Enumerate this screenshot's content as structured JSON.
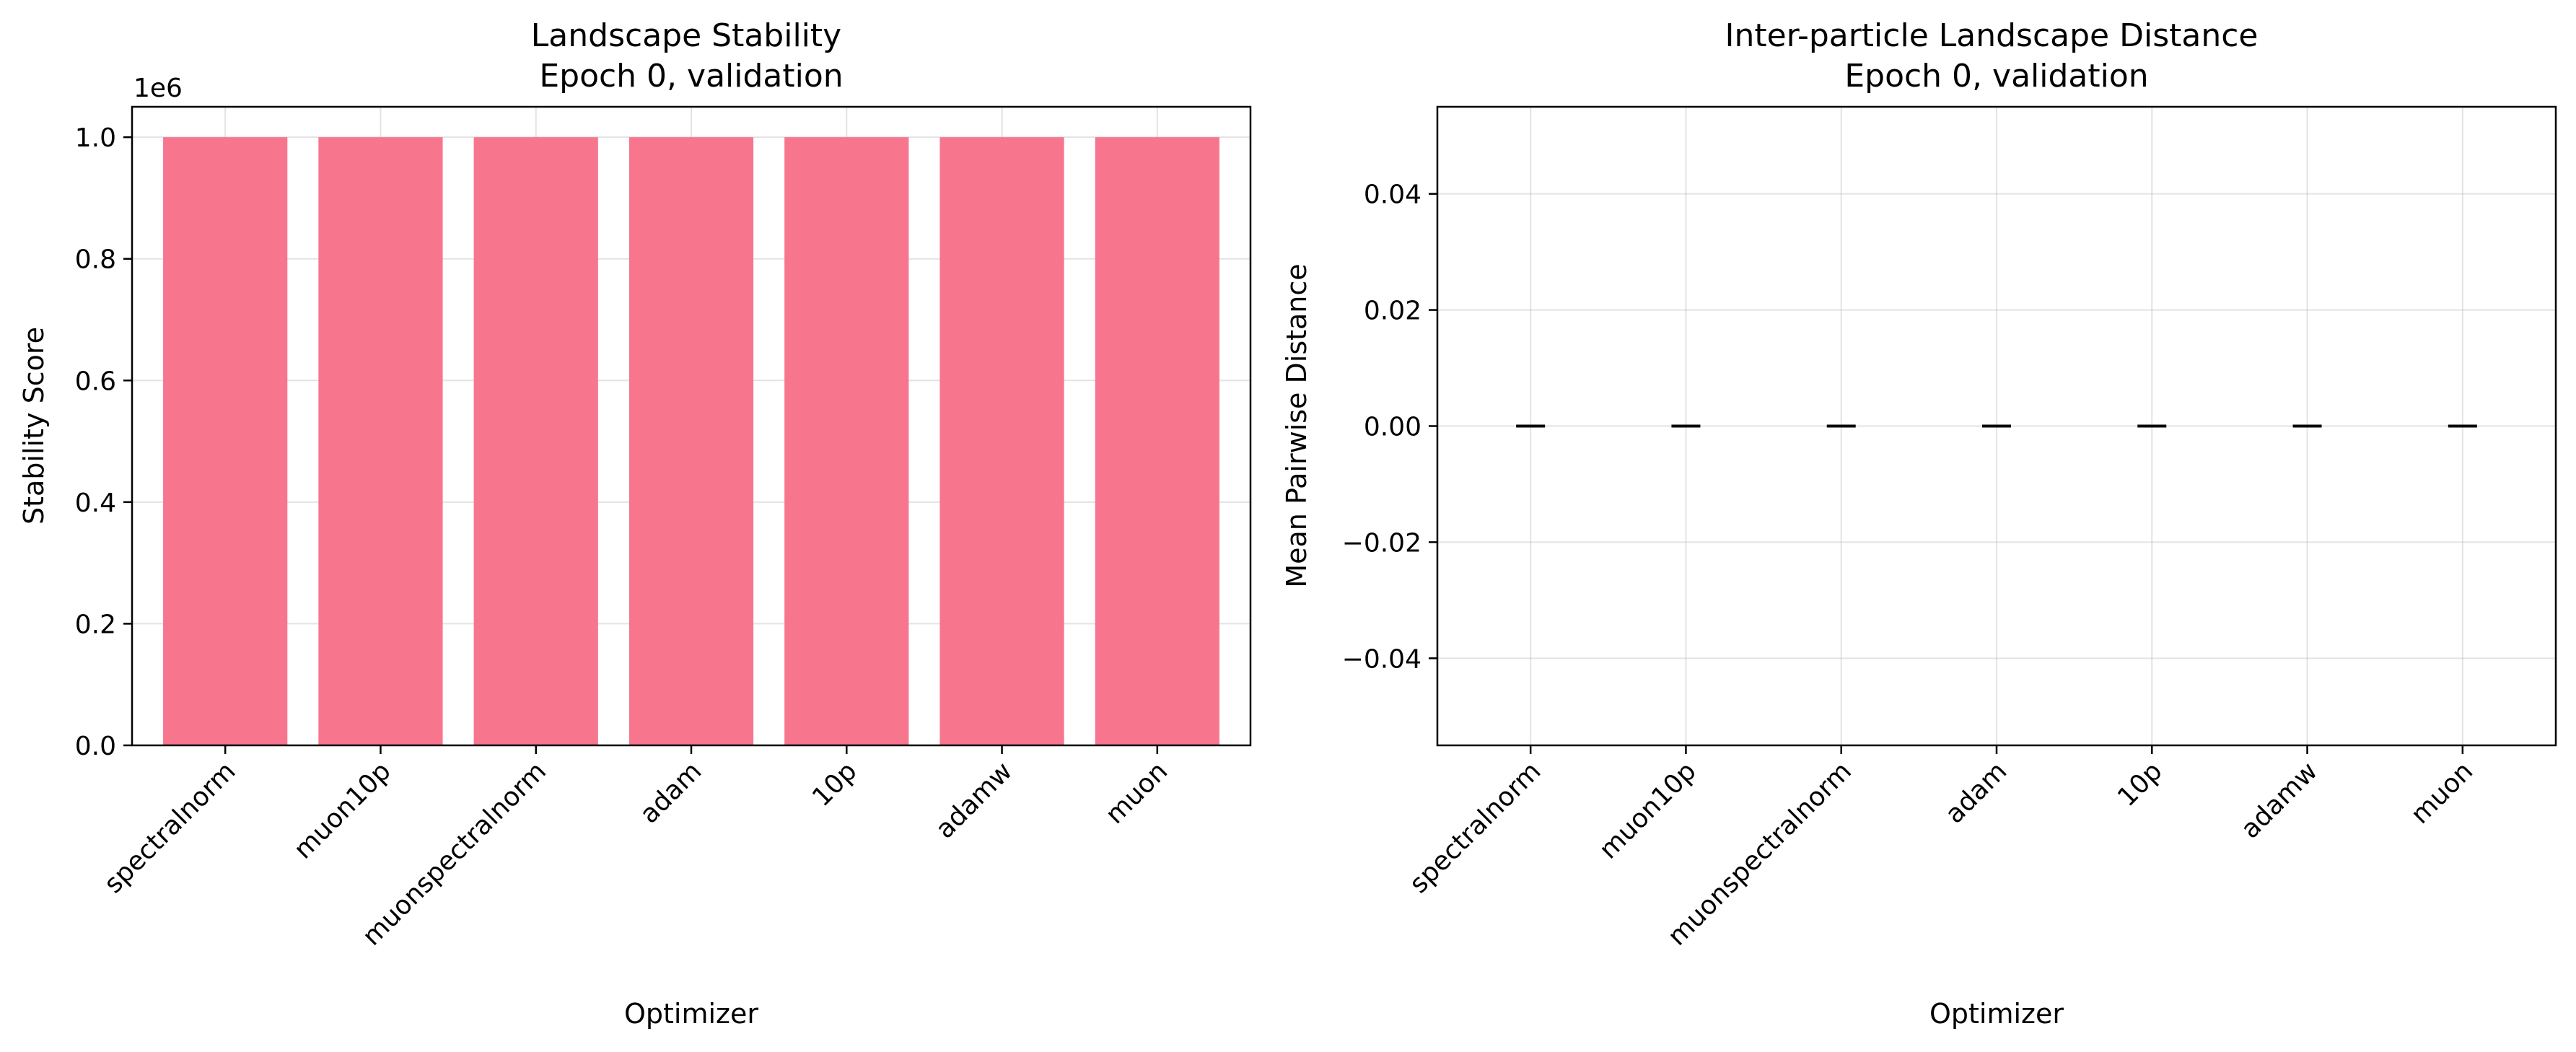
{
  "chart_data": [
    {
      "type": "bar",
      "title": "Landscape Stability\nEpoch 0, validation",
      "xlabel": "Optimizer",
      "ylabel": "Stability Score",
      "offset_text": "1e6",
      "categories": [
        "spectralnorm",
        "muon10p",
        "muonspectralnorm",
        "adam",
        "10p",
        "adamw",
        "muon"
      ],
      "values": [
        1000000,
        1000000,
        1000000,
        1000000,
        1000000,
        1000000,
        1000000
      ],
      "ylim": [
        0,
        1050000
      ],
      "yticks": [
        0,
        200000,
        400000,
        600000,
        800000,
        1000000
      ],
      "ytick_labels": [
        "0.0",
        "0.2",
        "0.4",
        "0.6",
        "0.8",
        "1.0"
      ],
      "bar_color": "#f7768e",
      "grid": true
    },
    {
      "type": "scatter",
      "title": "Inter-particle Landscape Distance\nEpoch 0, validation",
      "xlabel": "Optimizer",
      "ylabel": "Mean Pairwise Distance",
      "categories": [
        "spectralnorm",
        "muon10p",
        "muonspectralnorm",
        "adam",
        "10p",
        "adamw",
        "muon"
      ],
      "values": [
        0,
        0,
        0,
        0,
        0,
        0,
        0
      ],
      "ylim": [
        -0.055,
        0.055
      ],
      "yticks": [
        -0.04,
        -0.02,
        0.0,
        0.02,
        0.04
      ],
      "ytick_labels": [
        "−0.04",
        "−0.02",
        "0.00",
        "0.02",
        "0.04"
      ],
      "marker_color": "#000000",
      "grid": true
    }
  ]
}
